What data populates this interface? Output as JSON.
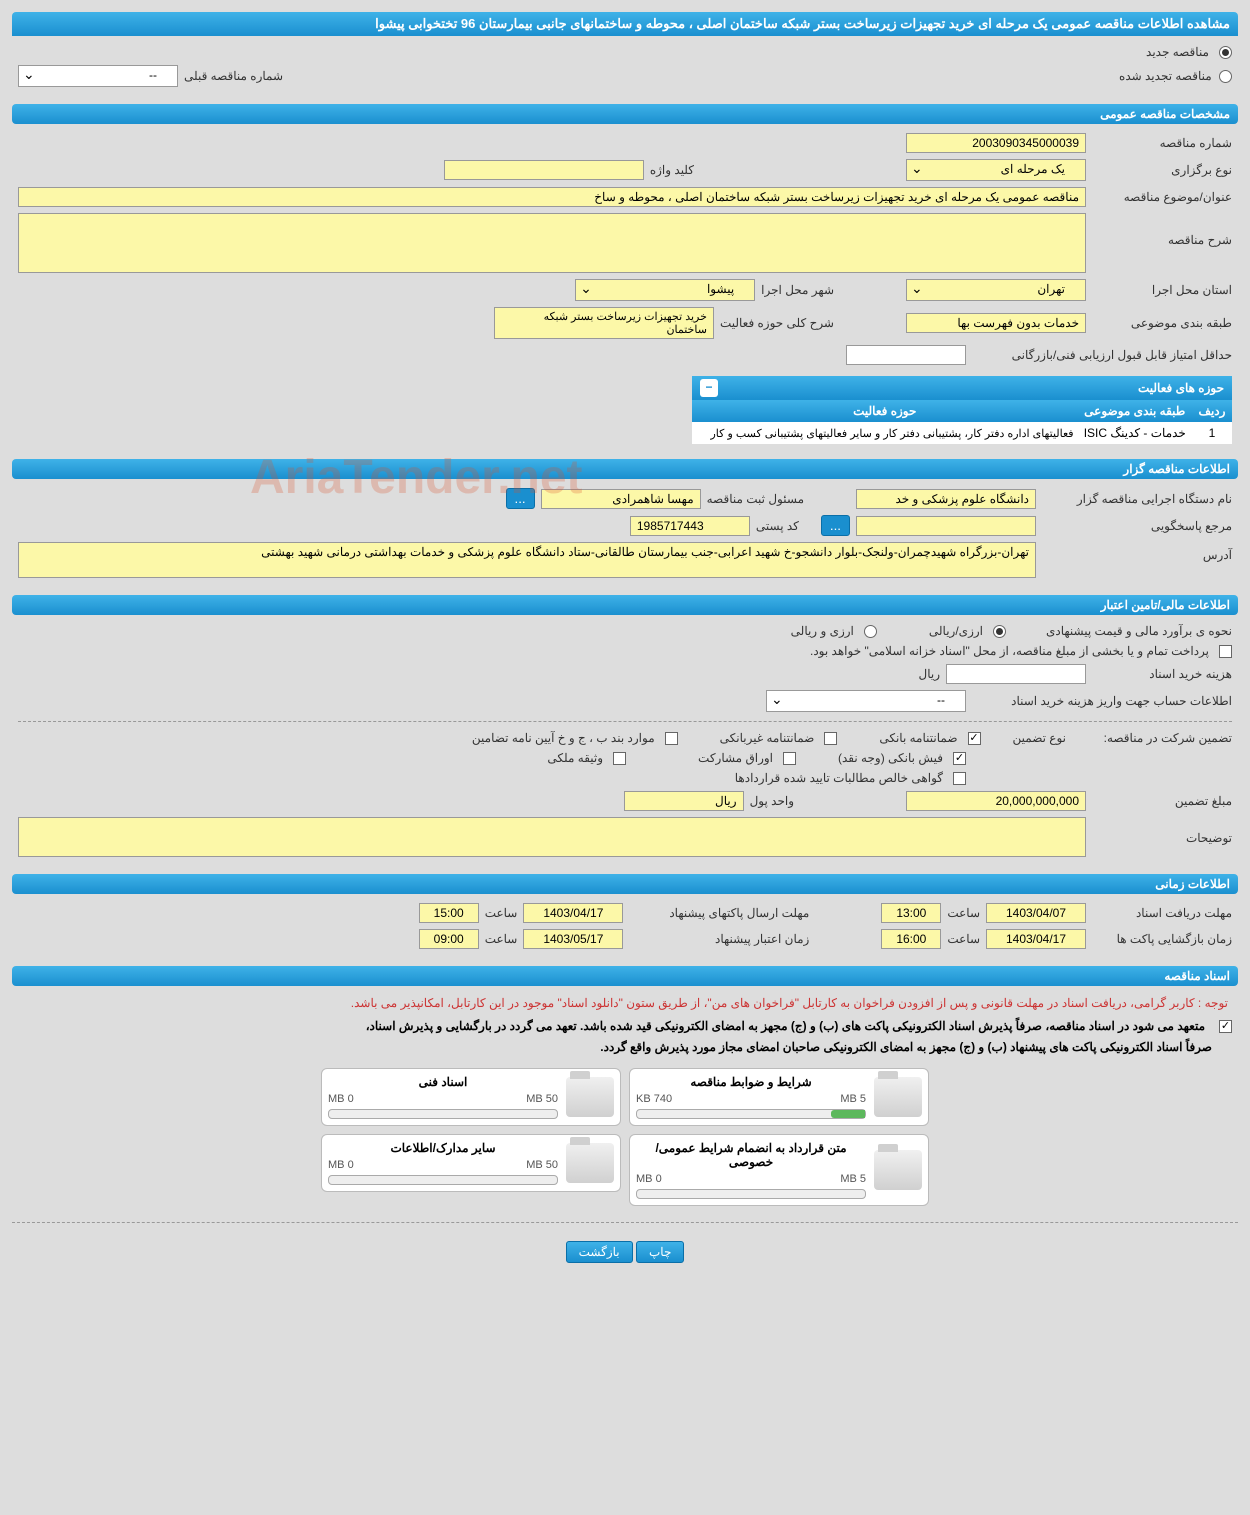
{
  "colors": {
    "header_gradient_top": "#3fb2e8",
    "header_gradient_bottom": "#1a8fcf",
    "field_bg": "#fcf8a8",
    "page_bg": "#dddddd",
    "note_red": "#cc3333",
    "progress_green": "#5cb85c"
  },
  "main_title": "مشاهده اطلاعات مناقصه عمومی یک مرحله ای خرید تجهیزات زیرساخت بستر شبکه ساختمان اصلی ، محوطه و ساختمانهای جانبی بیمارستان 96 تختخوابی پیشوا",
  "top_options": {
    "new_tender_label": "مناقصه جدید",
    "renewed_tender_label": "مناقصه تجدید شده",
    "prev_number_label": "شماره مناقصه قبلی",
    "prev_number_value": "--"
  },
  "sections": {
    "general_spec": "مشخصات مناقصه عمومی",
    "activity_areas": "حوزه های فعالیت",
    "organizer_info": "اطلاعات مناقصه گزار",
    "financial_info": "اطلاعات مالی/تامین اعتبار",
    "time_info": "اطلاعات زمانی",
    "tender_docs": "اسناد مناقصه"
  },
  "general": {
    "tender_number_label": "شماره مناقصه",
    "tender_number": "2003090345000039",
    "hold_type_label": "نوع برگزاری",
    "hold_type": "یک مرحله ای",
    "keyword_label": "کلید واژه",
    "keyword": "",
    "subject_label": "عنوان/موضوع مناقصه",
    "subject": "مناقصه عمومی یک مرحله ای خرید تجهیزات زیرساخت بستر شبکه ساختمان اصلی ، محوطه و ساخ",
    "description_label": "شرح مناقصه",
    "description": "",
    "province_label": "استان محل اجرا",
    "province": "تهران",
    "city_label": "شهر محل اجرا",
    "city": "پیشوا",
    "category_label": "طبقه بندی موضوعی",
    "category": "خدمات بدون فهرست بها",
    "activity_scope_label": "شرح کلی حوزه فعالیت",
    "activity_scope": "خرید تجهیزات زیرساخت بستر شبکه ساختمان",
    "min_score_label": "حداقل امتیاز قابل قبول ارزیابی فنی/بازرگانی",
    "min_score": ""
  },
  "activity_table": {
    "col_row": "ردیف",
    "col_category": "طبقه بندی موضوعی",
    "col_area": "حوزه فعالیت",
    "rows": [
      {
        "idx": "1",
        "category": "خدمات - کدینگ ISIC",
        "area": "فعالیتهای  اداره دفتر کار، پشتیبانی دفتر کار و سایر فعالیتهای پشتیبانی کسب و کار"
      }
    ]
  },
  "organizer": {
    "agency_label": "نام دستگاه اجرایی مناقصه گزار",
    "agency": "دانشگاه علوم پزشکی و خد",
    "reg_status_label": "مسئول ثبت مناقصه",
    "reg_status": "مهسا شاهمرادی",
    "responder_label": "مرجع پاسخگویی",
    "responder": "",
    "postal_label": "کد پستی",
    "postal": "1985717443",
    "address_label": "آدرس",
    "address": "تهران-بزرگراه شهیدچمران-ولنجک-بلوار دانشجو-خ شهید اعرابی-جنب بیمارستان طالقانی-ستاد دانشگاه علوم پزشکی و خدمات بهداشتی درمانی شهید بهشتی"
  },
  "financial": {
    "estimate_method_label": "نحوه ی برآورد مالی و قیمت پیشنهادی",
    "opt_rial": "ارزی/ریالی",
    "opt_currency": "ارزی و ریالی",
    "treasury_note": "پرداخت تمام و یا بخشی از مبلغ مناقصه، از محل \"اسناد خزانه اسلامی\" خواهد بود.",
    "doc_cost_label": "هزینه خرید اسناد",
    "doc_cost": "",
    "rial_suffix": "ریال",
    "account_info_label": "اطلاعات حساب جهت واریز هزینه خرید اسناد",
    "account_info": "--",
    "guarantee_label": "تضمین شرکت در مناقصه:",
    "guarantee_type_label": "نوع تضمین",
    "chk_bank_guarantee": "ضمانتنامه بانکی",
    "chk_nonbank_guarantee": "ضمانتنامه غیربانکی",
    "chk_clauses": "موارد بند ب ، ج و خ آیین نامه تضامین",
    "chk_cash": "فیش بانکی (وجه نقد)",
    "chk_bonds": "اوراق مشارکت",
    "chk_property": "وثیقه ملکی",
    "chk_receivables": "گواهی خالص مطالبات تایید شده قراردادها",
    "guarantee_amount_label": "مبلغ تضمین",
    "guarantee_amount": "20,000,000,000",
    "currency_unit_label": "واحد پول",
    "currency_unit": "ریال",
    "notes_label": "توضیحات",
    "notes": ""
  },
  "timing": {
    "receive_deadline_label": "مهلت دریافت اسناد",
    "receive_deadline_date": "1403/04/07",
    "receive_deadline_time": "13:00",
    "submit_deadline_label": "مهلت ارسال پاکتهای پیشنهاد",
    "submit_deadline_date": "1403/04/17",
    "submit_deadline_time": "15:00",
    "opening_label": "زمان بازگشایی پاکت ها",
    "opening_date": "1403/04/17",
    "opening_time": "16:00",
    "validity_label": "زمان اعتبار پیشنهاد",
    "validity_date": "1403/05/17",
    "validity_time": "09:00",
    "time_word": "ساعت"
  },
  "docs": {
    "note_red": "توجه : کاربر گرامی، دریافت اسناد در مهلت قانونی و پس از افزودن فراخوان به کارتابل \"فراخوان های من\"، از طریق ستون \"دانلود اسناد\" موجود در این کارتابل، امکانپذیر می باشد.",
    "note_black1": "متعهد می شود در اسناد مناقصه، صرفاً پذیرش اسناد الکترونیکی پاکت های (ب) و (ج) مجهز به امضای الکترونیکی قید شده باشد. تعهد می گردد در بارگشایی و پذیرش اسناد،",
    "note_black2": "صرفاً اسناد الکترونیکی پاکت های پیشنهاد (ب) و (ج) مجهز به امضای الکترونیکی صاحبان امضای مجاز مورد پذیرش واقع گردد.",
    "files": [
      {
        "title": "شرایط و ضوابط مناقصه",
        "used": "740 KB",
        "total": "5 MB",
        "pct": 15
      },
      {
        "title": "اسناد فنی",
        "used": "0 MB",
        "total": "50 MB",
        "pct": 0
      },
      {
        "title": "متن قرارداد به انضمام شرایط عمومی/خصوصی",
        "used": "0 MB",
        "total": "5 MB",
        "pct": 0
      },
      {
        "title": "سایر مدارک/اطلاعات",
        "used": "0 MB",
        "total": "50 MB",
        "pct": 0
      }
    ]
  },
  "buttons": {
    "print": "چاپ",
    "back": "بازگشت",
    "more": "..."
  },
  "watermark": "AriaTender.net"
}
